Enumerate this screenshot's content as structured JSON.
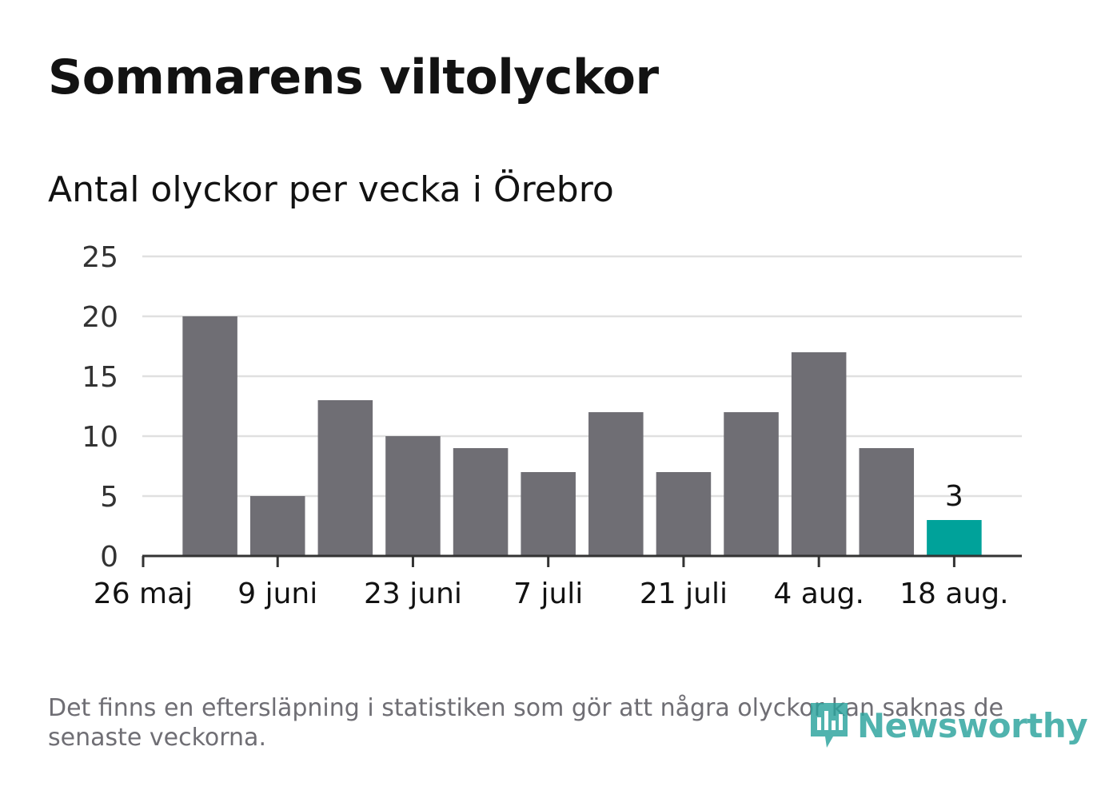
{
  "header": {
    "title": "Sommarens viltolyckor",
    "subtitle": "Antal olyckor per vecka i Örebro"
  },
  "chart_data": {
    "type": "bar",
    "title": "Sommarens viltolyckor",
    "subtitle": "Antal olyckor per vecka i Örebro",
    "xlabel": "",
    "ylabel": "",
    "ylim": [
      0,
      25
    ],
    "yticks": [
      0,
      5,
      10,
      15,
      20,
      25
    ],
    "grid": true,
    "x_tick_labels": [
      "26 maj",
      "9 juni",
      "23 juni",
      "7 juli",
      "21 juli",
      "4 aug.",
      "18 aug."
    ],
    "values": [
      20,
      5,
      13,
      10,
      9,
      7,
      12,
      7,
      12,
      17,
      9,
      3
    ],
    "highlight_index": 11,
    "highlight_label": "3",
    "colors": {
      "bar": "#6f6e74",
      "highlight": "#00a29a",
      "grid": "#e0e0e0",
      "axis": "#333333"
    }
  },
  "footer": {
    "note": "Det finns en eftersläpning i statistiken som gör att några olyckor kan saknas de senaste veckorna.",
    "logo_text": "Newsworthy",
    "logo_icon": "newsworthy-bar-chart-icon",
    "logo_color": "#2aa39d"
  }
}
